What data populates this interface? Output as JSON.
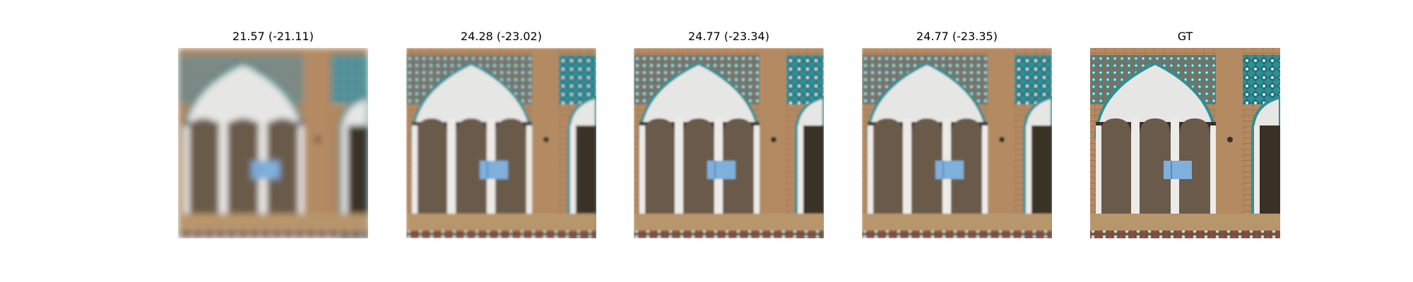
{
  "figure": {
    "panels": [
      {
        "title": "21.57 (-21.11)",
        "blur": 4.5
      },
      {
        "title": "24.28 (-23.02)",
        "blur": 1.6
      },
      {
        "title": "24.77 (-23.34)",
        "blur": 1.3
      },
      {
        "title": "24.77 (-23.35)",
        "blur": 1.3
      },
      {
        "title": "GT",
        "blur": 0
      }
    ]
  },
  "colors": {
    "brick": "#b48a62",
    "brick_dark": "#9c7452",
    "arch_white": "#e6e6e4",
    "tile_teal": "#2f8f95",
    "tile_brown": "#8a6a58",
    "shadow": "#3a3026",
    "window_blue": "#7fb0dc"
  }
}
